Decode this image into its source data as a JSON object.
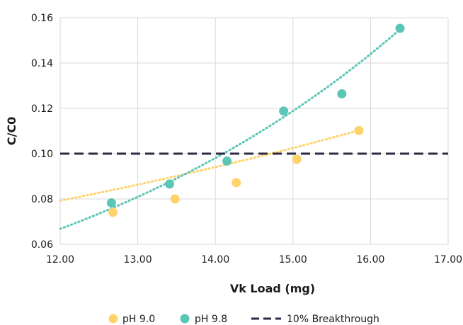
{
  "chart_data": {
    "type": "scatter",
    "title": "",
    "xlabel": "Vk Load (mg)",
    "ylabel": "C/C0",
    "xlim": [
      12.0,
      17.0
    ],
    "ylim": [
      0.06,
      0.16
    ],
    "x_ticks": [
      "12.00",
      "13.00",
      "14.00",
      "15.00",
      "16.00",
      "17.00"
    ],
    "y_ticks": [
      "0.06",
      "0.08",
      "0.10",
      "0.12",
      "0.14",
      "0.16"
    ],
    "grid": true,
    "legend_position": "bottom",
    "series": [
      {
        "name": "pH 9.0",
        "color": "#FFD36B",
        "x": [
          12.68,
          13.48,
          14.27,
          15.05,
          15.85
        ],
        "y": [
          0.0741,
          0.08,
          0.0872,
          0.0975,
          0.1102
        ],
        "trendline": {
          "type": "exponential",
          "a": 0.0283,
          "b": 0.0858,
          "x_range": [
            12.0,
            15.85
          ]
        }
      },
      {
        "name": "pH 9.8",
        "color": "#5CC6B6",
        "x": [
          12.66,
          13.41,
          14.15,
          14.88,
          15.63,
          16.38
        ],
        "y": [
          0.0783,
          0.0866,
          0.0967,
          0.1188,
          0.1264,
          0.1553
        ],
        "trendline": {
          "type": "exponential",
          "a": 0.00667,
          "b": 0.192,
          "x_range": [
            12.0,
            16.38
          ]
        }
      }
    ],
    "reference_line": {
      "name": "10% Breakthrough",
      "y": 0.1,
      "color": "#2B2B45",
      "style": "dashed"
    }
  }
}
